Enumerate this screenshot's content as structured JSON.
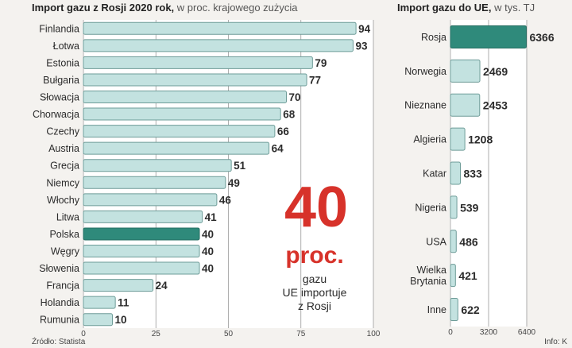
{
  "colors": {
    "bar_fill": "#c3e2e0",
    "bar_stroke": "#6e9c98",
    "highlight_fill": "#2f8a7b",
    "highlight_stroke": "#236c60",
    "big_number": "#d7322a",
    "grid": "#9a9a9a"
  },
  "left_title": {
    "bold": "Import gazu z Rosji 2020 rok,",
    "sub": "w proc. krajowego zużycia"
  },
  "right_title": {
    "bold": "Import gazu do UE,",
    "sub": "w tys. TJ"
  },
  "annotation": {
    "big_value": "40",
    "unit": "proc.",
    "lines": [
      "gazu",
      "UE importuje",
      "z Rosji"
    ]
  },
  "source": "Źródło: Statista",
  "credit": "Info: K",
  "chart_data": [
    {
      "type": "bar",
      "orientation": "horizontal",
      "title": "Import gazu z Rosji 2020 rok, w proc. krajowego zużycia",
      "categories": [
        "Finlandia",
        "Łotwa",
        "Estonia",
        "Bułgaria",
        "Słowacja",
        "Chorwacja",
        "Czechy",
        "Austria",
        "Grecja",
        "Niemcy",
        "Włochy",
        "Litwa",
        "Polska",
        "Węgry",
        "Słowenia",
        "Francja",
        "Holandia",
        "Rumunia"
      ],
      "values": [
        94,
        93,
        79,
        77,
        70,
        68,
        66,
        64,
        51,
        49,
        46,
        41,
        40,
        40,
        40,
        24,
        11,
        10
      ],
      "value_labels": [
        "94",
        "93",
        "79",
        "77",
        "70",
        "68",
        "66",
        "64",
        "51",
        "49",
        "46",
        "41",
        "40",
        "40",
        "40",
        "24",
        "11",
        "10"
      ],
      "highlight": "Polska",
      "xlim": [
        0,
        100
      ],
      "xticks": [
        0,
        25,
        50,
        75,
        100
      ],
      "xtick_labels": [
        "0",
        "25",
        "50",
        "75",
        "100"
      ]
    },
    {
      "type": "bar",
      "orientation": "horizontal",
      "title": "Import gazu do UE, w tys. TJ",
      "categories": [
        "Rosja",
        "Norwegia",
        "Nieznane",
        "Algieria",
        "Katar",
        "Nigeria",
        "USA",
        "Wielka Brytania",
        "Inne"
      ],
      "category_lines": [
        [
          "Rosja"
        ],
        [
          "Norwegia"
        ],
        [
          "Nieznane"
        ],
        [
          "Algieria"
        ],
        [
          "Katar"
        ],
        [
          "Nigeria"
        ],
        [
          "USA"
        ],
        [
          "Wielka",
          "Brytania"
        ],
        [
          "Inne"
        ]
      ],
      "values": [
        6366,
        2469,
        2453,
        1208,
        833,
        539,
        486,
        421,
        622
      ],
      "value_labels": [
        "6366",
        "2469",
        "2453",
        "1208",
        "833",
        "539",
        "486",
        "421",
        "622"
      ],
      "highlight": "Rosja",
      "xlim": [
        0,
        6400
      ],
      "xticks": [
        0,
        3200,
        6400
      ],
      "xtick_labels": [
        "0",
        "3200",
        "6400"
      ]
    }
  ]
}
